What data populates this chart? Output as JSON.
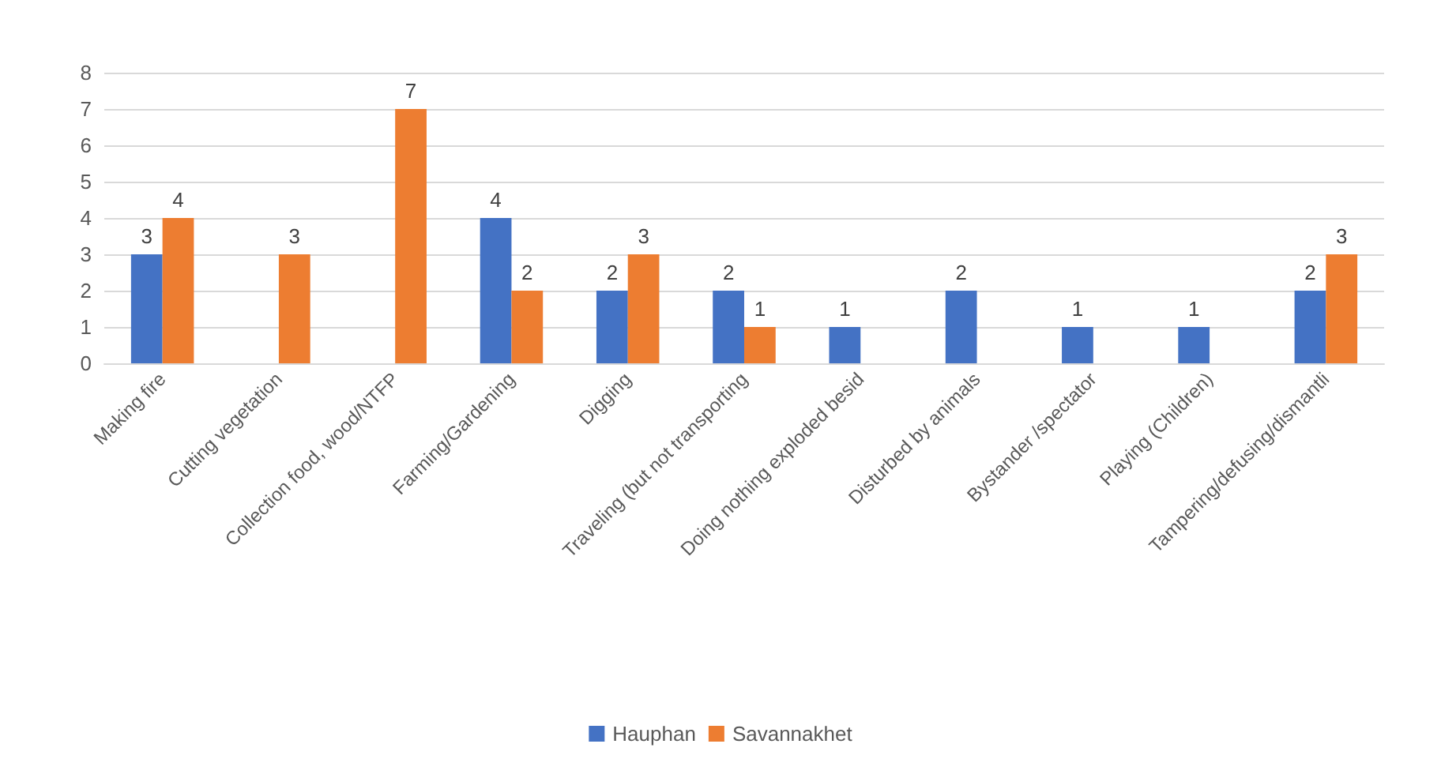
{
  "chart_data": {
    "type": "bar",
    "categories": [
      "Making fire",
      "Cutting vegetation",
      "Collection food, wood/NTFP",
      "Farming/Gardening",
      "Digging",
      "Traveling (but not transporting",
      "Doing nothing exploded besid",
      "Disturbed by animals",
      "Bystander /spectator",
      "Playing (Children)",
      "Tampering/defusing/dismantli"
    ],
    "series": [
      {
        "name": "Hauphan",
        "color": "#4472c4",
        "values": [
          3,
          null,
          null,
          4,
          2,
          2,
          1,
          2,
          1,
          1,
          2
        ]
      },
      {
        "name": "Savannakhet",
        "color": "#ed7d31",
        "values": [
          4,
          3,
          7,
          2,
          3,
          1,
          null,
          null,
          null,
          null,
          3
        ]
      }
    ],
    "ylim": [
      0,
      8
    ],
    "yticks": [
      0,
      1,
      2,
      3,
      4,
      5,
      6,
      7,
      8
    ],
    "grid": "y",
    "legend": "bottom",
    "data_labels": true
  }
}
